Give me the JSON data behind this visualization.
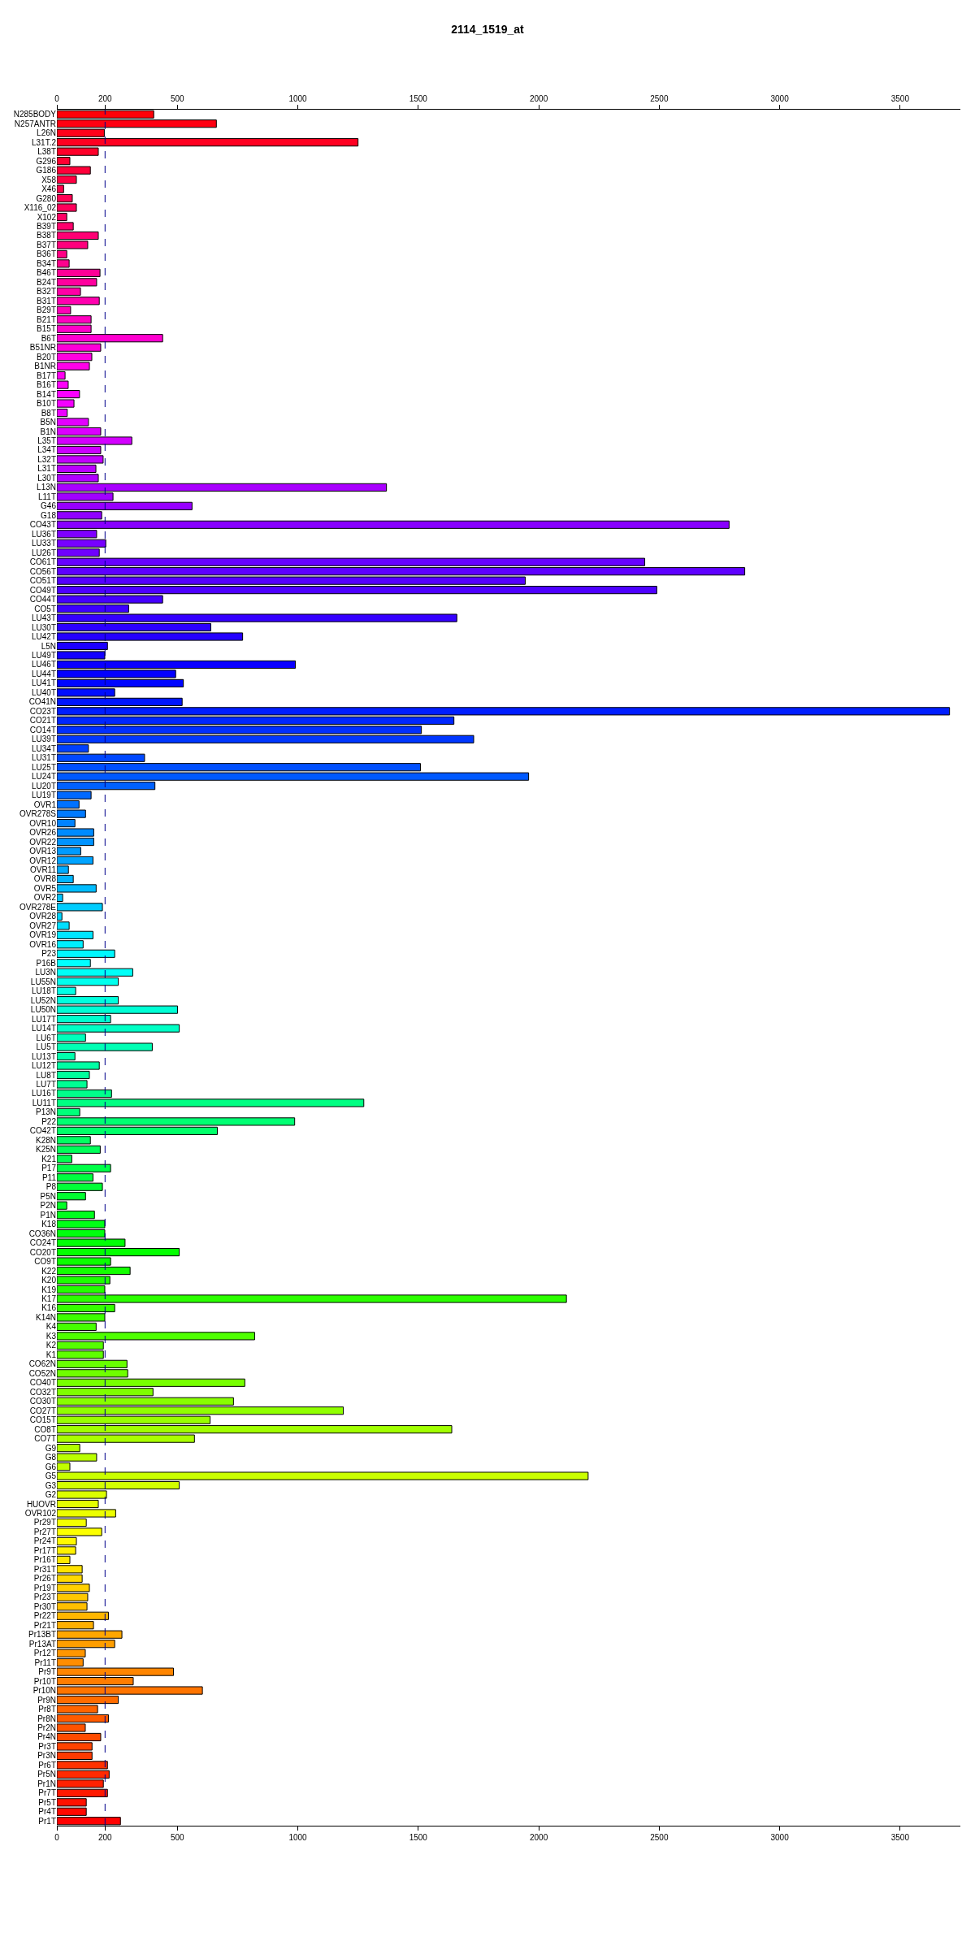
{
  "chart_data": {
    "type": "bar",
    "orientation": "horizontal",
    "title": "2114_1519_at",
    "categories": [
      "N285BODY",
      "N257ANTR",
      "L26N",
      "L31T.2",
      "L38T",
      "G296",
      "G186",
      "X58",
      "X46",
      "G280",
      "X116_02",
      "X102",
      "B39T",
      "B38T",
      "B37T",
      "B36T",
      "B34T",
      "B46T",
      "B24T",
      "B32T",
      "B31T",
      "B29T",
      "B21T",
      "B15T",
      "B6T",
      "B51NR",
      "B20T",
      "B1NR",
      "B17T",
      "B16T",
      "B14T",
      "B10T",
      "B8T",
      "B5N",
      "B1N",
      "L35T",
      "L34T",
      "L32T",
      "L31T",
      "L30T",
      "L13N",
      "L11T",
      "G46",
      "G18",
      "CO43T",
      "LU36T",
      "LU33T",
      "LU26T",
      "CO61T",
      "CO56T",
      "CO51T",
      "CO49T",
      "CO44T",
      "CO5T",
      "LU43T",
      "LU30T",
      "LU42T",
      "L5N",
      "LU49T",
      "LU46T",
      "LU44T",
      "LU41T",
      "LU40T",
      "CO41N",
      "CO23T",
      "CO21T",
      "CO14T",
      "LU39T",
      "LU34T",
      "LU31T",
      "LU25T",
      "LU24T",
      "LU20T",
      "LU19T",
      "OVR1",
      "OVR278S",
      "OVR10",
      "OVR26",
      "OVR22",
      "OVR13",
      "OVR12",
      "OVR11",
      "OVR8",
      "OVR5",
      "OVR2",
      "OVR278E",
      "OVR28",
      "OVR27",
      "OVR19",
      "OVR16",
      "P23",
      "P16B",
      "LU3N",
      "LU55N",
      "LU18T",
      "LU52N",
      "LU50N",
      "LU17T",
      "LU14T",
      "LU6T",
      "LU5T",
      "LU13T",
      "LU12T",
      "LU8T",
      "LU7T",
      "LU16T",
      "LU11T",
      "P13N",
      "P22",
      "CO42T",
      "K28N",
      "K25N",
      "K21",
      "P17",
      "P11",
      "P8",
      "P5N",
      "P2N",
      "P1N",
      "K18",
      "CO36N",
      "CO24T",
      "CO20T",
      "CO9T",
      "K22",
      "K20",
      "K19",
      "K17",
      "K16",
      "K14N",
      "K4",
      "K3",
      "K2",
      "K1",
      "CO62N",
      "CO52N",
      "CO40T",
      "CO32T",
      "CO30T",
      "CO27T",
      "CO15T",
      "CO8T",
      "CO7T",
      "G9",
      "G8",
      "G6",
      "G5",
      "G3",
      "G2",
      "HUOVR",
      "OVR102",
      "Pr29T",
      "Pr27T",
      "Pr24T",
      "Pr17T",
      "Pr16T",
      "Pr31T",
      "Pr26T",
      "Pr19T",
      "Pr23T",
      "Pr30T",
      "Pr22T",
      "Pr21T",
      "Pr13BT",
      "Pr13AT",
      "Pr12T",
      "Pr11T",
      "Pr9T",
      "Pr10T",
      "Pr10N",
      "Pr9N",
      "Pr8T",
      "Pr8N",
      "Pr2N",
      "Pr4N",
      "Pr3T",
      "Pr3N",
      "Pr6T",
      "Pr5N",
      "Pr1N",
      "Pr7T",
      "Pr5T",
      "Pr4T",
      "Pr1T"
    ],
    "values": [
      402,
      662,
      197,
      1250,
      172,
      54,
      139,
      81,
      28,
      64,
      81,
      41,
      68,
      172,
      128,
      41,
      51,
      179,
      165,
      98,
      176,
      57,
      142,
      142,
      439,
      182,
      145,
      135,
      34,
      47,
      94,
      71,
      43,
      131,
      182,
      311,
      182,
      192,
      162,
      172,
      1368,
      233,
      561,
      186,
      2790,
      165,
      203,
      176,
      2440,
      2855,
      1944,
      2490,
      439,
      298,
      1660,
      639,
      771,
      210,
      199,
      990,
      493,
      525,
      240,
      520,
      3705,
      1648,
      1513,
      1730,
      131,
      364,
      1509,
      1958,
      407,
      142,
      92,
      119,
      75,
      153,
      153,
      99,
      150,
      48,
      68,
      163,
      24,
      189,
      21,
      51,
      150,
      109,
      240,
      139,
      315,
      255,
      78,
      255,
      501,
      223,
      508,
      119,
      396,
      75,
      176,
      135,
      125,
      227,
      1274,
      95,
      987,
      666,
      139,
      180,
      62,
      223,
      150,
      189,
      119,
      41,
      156,
      199,
      199,
      283,
      508,
      223,
      304,
      220,
      199,
      2115,
      240,
      199,
      163,
      821,
      193,
      193,
      291,
      294,
      780,
      399,
      733,
      1189,
      636,
      1639,
      571,
      95,
      165,
      54,
      2205,
      508,
      206,
      172,
      244,
      122,
      186,
      81,
      78,
      54,
      105,
      105,
      135,
      128,
      125,
      214,
      152,
      270,
      240,
      118,
      109,
      484,
      317,
      604,
      255,
      169,
      214,
      118,
      182,
      146,
      146,
      210,
      217,
      193,
      210,
      122,
      122,
      264
    ],
    "colors": [
      "#FF0008",
      "#FF0011",
      "#FF0019",
      "#FF0021",
      "#FF002A",
      "#FF0032",
      "#FF003A",
      "#FF0043",
      "#FF004B",
      "#FF0053",
      "#FF005B",
      "#FF0064",
      "#FF006C",
      "#FF0074",
      "#FF007D",
      "#FF0085",
      "#FF008D",
      "#FF0096",
      "#FF009E",
      "#FF00A6",
      "#FF00AF",
      "#FF00B7",
      "#FF00BF",
      "#FF00C8",
      "#FF00D0",
      "#FF00D8",
      "#FF00E1",
      "#FF00E9",
      "#FF00F1",
      "#FF00F9",
      "#FC00FF",
      "#F400FF",
      "#EC00FF",
      "#E300FF",
      "#DB00FF",
      "#D300FF",
      "#CA00FF",
      "#C200FF",
      "#BA00FF",
      "#B100FF",
      "#A900FF",
      "#A100FF",
      "#9800FF",
      "#9000FF",
      "#8800FF",
      "#7F00FF",
      "#7700FF",
      "#6F00FF",
      "#6700FF",
      "#5E00FF",
      "#5600FF",
      "#4E00FF",
      "#4500FF",
      "#3D00FF",
      "#3500FF",
      "#2C00FF",
      "#2400FF",
      "#1C00FF",
      "#1300FF",
      "#0B00FF",
      "#0300FF",
      "#0006FF",
      "#000EFF",
      "#0016FF",
      "#001EFF",
      "#0027FF",
      "#002FFF",
      "#0037FF",
      "#0040FF",
      "#0048FF",
      "#0050FF",
      "#0059FF",
      "#0061FF",
      "#0069FF",
      "#0072FF",
      "#007AFF",
      "#0082FF",
      "#008BFF",
      "#0093FF",
      "#009BFF",
      "#00A4FF",
      "#00ACFF",
      "#00B4FF",
      "#00BCFF",
      "#00C5FF",
      "#00CDFF",
      "#00D5FF",
      "#00DEFF",
      "#00E6FF",
      "#00EEFF",
      "#00F7FF",
      "#00FFFF",
      "#00FFF7",
      "#00FFEE",
      "#00FFE6",
      "#00FFDE",
      "#00FFD5",
      "#00FFCD",
      "#00FFC5",
      "#00FFBC",
      "#00FFB4",
      "#00FFAC",
      "#00FFA4",
      "#00FF9B",
      "#00FF93",
      "#00FF8B",
      "#00FF82",
      "#00FF7A",
      "#00FF72",
      "#00FF69",
      "#00FF61",
      "#00FF59",
      "#00FF50",
      "#00FF48",
      "#00FF40",
      "#00FF37",
      "#00FF2F",
      "#00FF27",
      "#00FF1E",
      "#00FF16",
      "#00FF0E",
      "#00FF06",
      "#03FF00",
      "#0BFF00",
      "#13FF00",
      "#1CFF00",
      "#24FF00",
      "#2CFF00",
      "#35FF00",
      "#3DFF00",
      "#45FF00",
      "#4EFF00",
      "#56FF00",
      "#5EFF00",
      "#67FF00",
      "#6FFF00",
      "#77FF00",
      "#7FFF00",
      "#88FF00",
      "#90FF00",
      "#98FF00",
      "#A1FF00",
      "#A9FF00",
      "#B1FF00",
      "#BAFF00",
      "#C2FF00",
      "#CAFF00",
      "#D3FF00",
      "#DBFF00",
      "#E3FF00",
      "#ECFF00",
      "#F4FF00",
      "#FCFF00",
      "#FFF900",
      "#FFF100",
      "#FFE900",
      "#FFE100",
      "#FFD800",
      "#FFD000",
      "#FFC800",
      "#FFBF00",
      "#FFB700",
      "#FFAF00",
      "#FFA600",
      "#FF9E00",
      "#FF9600",
      "#FF8D00",
      "#FF8500",
      "#FF7D00",
      "#FF7400",
      "#FF6C00",
      "#FF6400",
      "#FF5B00",
      "#FF5300",
      "#FF4B00",
      "#FF4300",
      "#FF3A00",
      "#FF3200",
      "#FF2A00",
      "#FF2100",
      "#FF1900",
      "#FF1100",
      "#FF0800",
      "#FF0000"
    ],
    "xlim": [
      0,
      3750
    ],
    "xticks": [
      0,
      200,
      500,
      1000,
      1500,
      2000,
      2500,
      3000,
      3500
    ],
    "x2lim": [
      0,
      3750
    ],
    "x2ticks": [
      0,
      200,
      500,
      1000,
      1500,
      2000,
      2500,
      3000,
      3500
    ],
    "ref_lines": [
      {
        "axis": "x",
        "value": 200,
        "color": "#00008B",
        "line_style": "dashed"
      }
    ],
    "grid": false
  }
}
